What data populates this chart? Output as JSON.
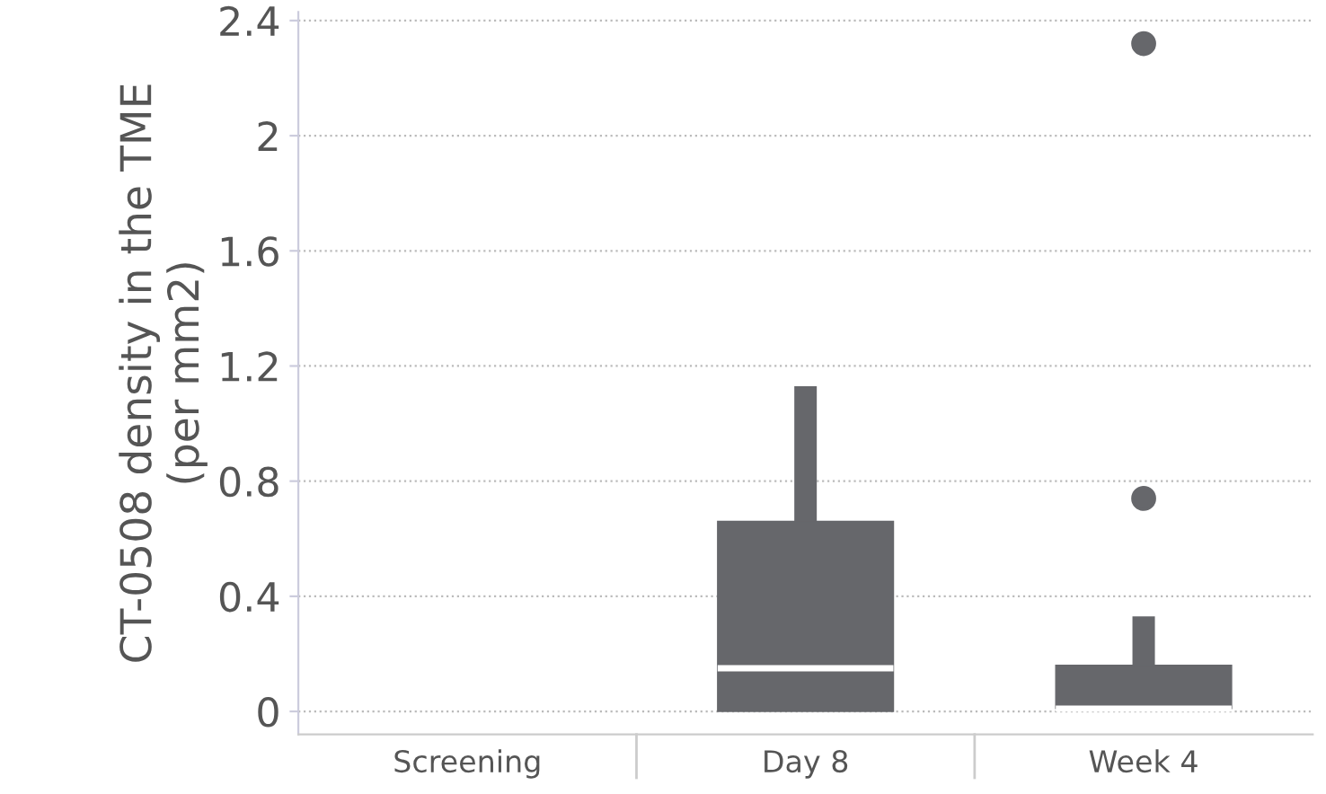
{
  "chart_data": {
    "type": "box",
    "ylabel": "CT-0508 density in the TME\n(per mm2)",
    "categories": [
      "Screening",
      "Day 8",
      "Week 4"
    ],
    "boxes": [
      null,
      {
        "low": 0,
        "q1": 0,
        "median": 0.15,
        "q3": 0.66,
        "high": 1.13
      },
      {
        "low": 0.01,
        "q1": 0.01,
        "median": 0.01,
        "q3": 0.16,
        "high": 0.33,
        "outliers": [
          0.74,
          2.32
        ]
      }
    ],
    "color": "#66676b",
    "ylim": [
      -0.08,
      2.43
    ],
    "yticks": [
      0,
      0.4,
      0.8,
      1.2,
      1.6,
      2,
      2.4
    ],
    "grid": "y"
  }
}
